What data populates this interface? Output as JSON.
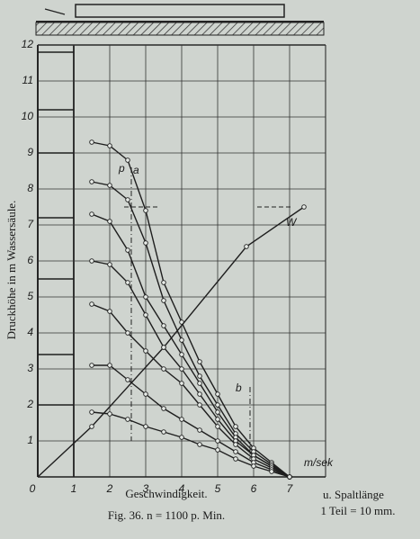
{
  "chart_data": {
    "type": "line",
    "ylabel": "Druckhöhe in m Wassersäule.",
    "xlabel": "Geschwindigkeit.",
    "caption": "Fig. 36.   n = 1100 p. Min.",
    "note": [
      "u. Spaltlänge",
      "1 Teil = 10 mm."
    ],
    "x_unit": "m/sek",
    "annotations": [
      "p",
      "a",
      "W",
      "b"
    ],
    "xlim": [
      0,
      8
    ],
    "ylim": [
      0,
      12
    ],
    "xticks": [
      0,
      1,
      2,
      3,
      4,
      5,
      6,
      7
    ],
    "yticks": [
      1,
      2,
      3,
      4,
      5,
      6,
      7,
      8,
      9,
      10,
      11,
      12
    ],
    "grid": true,
    "color": "#1e1e1e",
    "series": [
      {
        "x": [
          1.5,
          2,
          2.5,
          3,
          3.5,
          4,
          4.5,
          5,
          5.5,
          6,
          6.5,
          7
        ],
        "values": [
          9.3,
          9.2,
          8.8,
          7.4,
          5.4,
          4.3,
          3.2,
          2.3,
          1.4,
          0.8,
          0.4,
          0
        ]
      },
      {
        "x": [
          1.5,
          2,
          2.5,
          3,
          3.5,
          4,
          4.5,
          5,
          5.5,
          6,
          6.5,
          7
        ],
        "values": [
          8.2,
          8.1,
          7.7,
          6.5,
          4.9,
          3.8,
          2.8,
          2.0,
          1.2,
          0.7,
          0.35,
          0
        ]
      },
      {
        "x": [
          1.5,
          2,
          2.5,
          3,
          3.5,
          4,
          4.5,
          5,
          5.5,
          6,
          6.5,
          7
        ],
        "values": [
          7.3,
          7.1,
          6.3,
          5.0,
          4.2,
          3.4,
          2.6,
          1.8,
          1.1,
          0.6,
          0.3,
          0
        ]
      },
      {
        "x": [
          1.5,
          2,
          2.5,
          3,
          3.5,
          4,
          4.5,
          5,
          5.5,
          6,
          6.5,
          7
        ],
        "values": [
          6.0,
          5.9,
          5.4,
          4.5,
          3.6,
          3.0,
          2.3,
          1.6,
          1.0,
          0.6,
          0.3,
          0
        ]
      },
      {
        "x": [
          1.5,
          2,
          2.5,
          3,
          3.5,
          4,
          4.5,
          5,
          5.5,
          6,
          6.5,
          7
        ],
        "values": [
          4.8,
          4.6,
          4.0,
          3.5,
          3.0,
          2.6,
          2.0,
          1.4,
          0.9,
          0.5,
          0.25,
          0
        ]
      },
      {
        "x": [
          1.5,
          2,
          2.5,
          3,
          3.5,
          4,
          4.5,
          5,
          5.5,
          6,
          6.5,
          7
        ],
        "values": [
          3.1,
          3.1,
          2.7,
          2.3,
          1.9,
          1.6,
          1.3,
          1.0,
          0.7,
          0.4,
          0.2,
          0
        ]
      },
      {
        "x": [
          1.5,
          2,
          2.5,
          3,
          3.5,
          4,
          4.5,
          5,
          5.5,
          6,
          6.5,
          7
        ],
        "values": [
          1.8,
          1.75,
          1.6,
          1.4,
          1.25,
          1.1,
          0.9,
          0.75,
          0.5,
          0.3,
          0.15,
          0
        ]
      },
      {
        "x": [
          0,
          1.5,
          3.5,
          5.8,
          7.4
        ],
        "values": [
          0,
          1.4,
          3.6,
          6.4,
          7.5
        ]
      },
      {
        "x": [
          0,
          1
        ],
        "values": [
          11.8,
          11.8
        ]
      },
      {
        "x": [
          0,
          1
        ],
        "values": [
          10.2,
          10.2
        ]
      },
      {
        "x": [
          0,
          1
        ],
        "values": [
          9,
          9
        ]
      },
      {
        "x": [
          0,
          1
        ],
        "values": [
          7.2,
          7.2
        ]
      },
      {
        "x": [
          0,
          1
        ],
        "values": [
          5.5,
          5.5
        ]
      },
      {
        "x": [
          0,
          1
        ],
        "values": [
          3.4,
          3.4
        ]
      },
      {
        "x": [
          0,
          1
        ],
        "values": [
          2.0,
          2.0
        ]
      }
    ]
  }
}
